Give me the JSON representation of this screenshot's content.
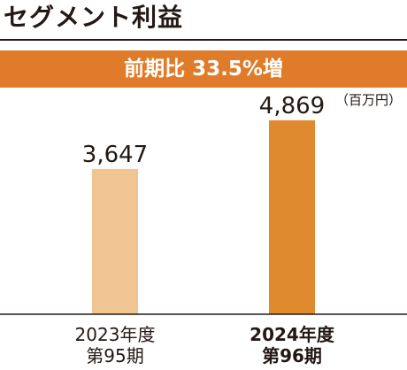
{
  "header": {
    "title": "セグメント利益",
    "banner": "前期比 33.5%増",
    "unit": "（百万円）"
  },
  "colors": {
    "accent": "#e07b2a",
    "previous_bar": "#f0c591",
    "current_bar": "#e08a30",
    "text": "#231815"
  },
  "chart_data": {
    "type": "bar",
    "categories": [
      [
        "2023年度",
        "第95期"
      ],
      [
        "2024年度",
        "第96期"
      ]
    ],
    "values": [
      3647,
      4869
    ],
    "value_labels": [
      "3,647",
      "4,869"
    ],
    "ylim": [
      0,
      6000
    ],
    "grid": false,
    "axis_baseline": true,
    "legend": "none"
  }
}
